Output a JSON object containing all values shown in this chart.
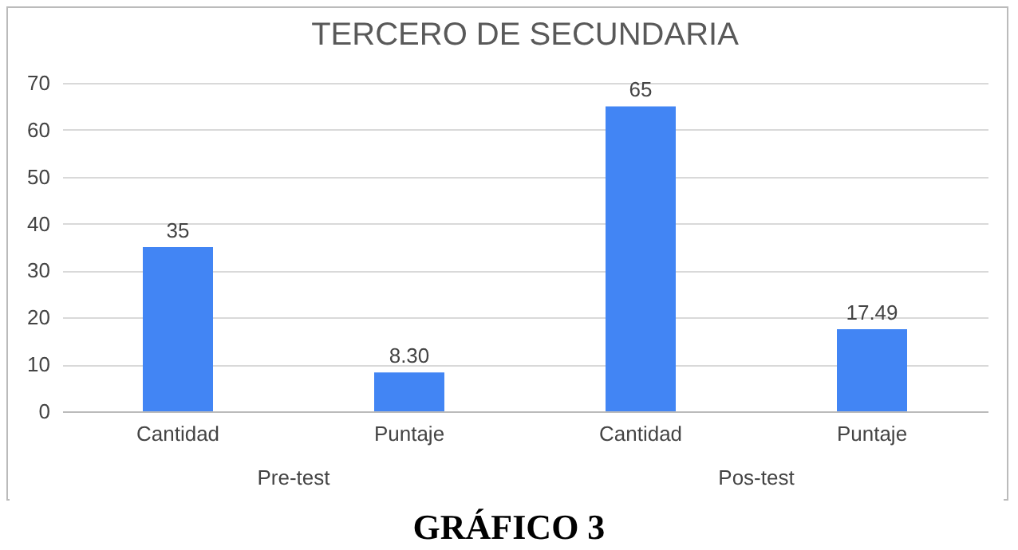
{
  "chart_data": {
    "type": "bar",
    "title": "TERCERO DE SECUNDARIA",
    "categories": [
      "Cantidad",
      "Puntaje",
      "Cantidad",
      "Puntaje"
    ],
    "values": [
      35,
      8.3,
      65,
      17.49
    ],
    "value_labels": [
      "35",
      "8.30",
      "65",
      "17.49"
    ],
    "color": "#4285f4",
    "ylim": [
      0,
      70
    ],
    "yticks": [
      0,
      10,
      20,
      30,
      40,
      50,
      60,
      70
    ],
    "grid": "y",
    "annotations": [
      "Pre-test",
      "Pos-test",
      "GRÁFICO 3"
    ]
  }
}
